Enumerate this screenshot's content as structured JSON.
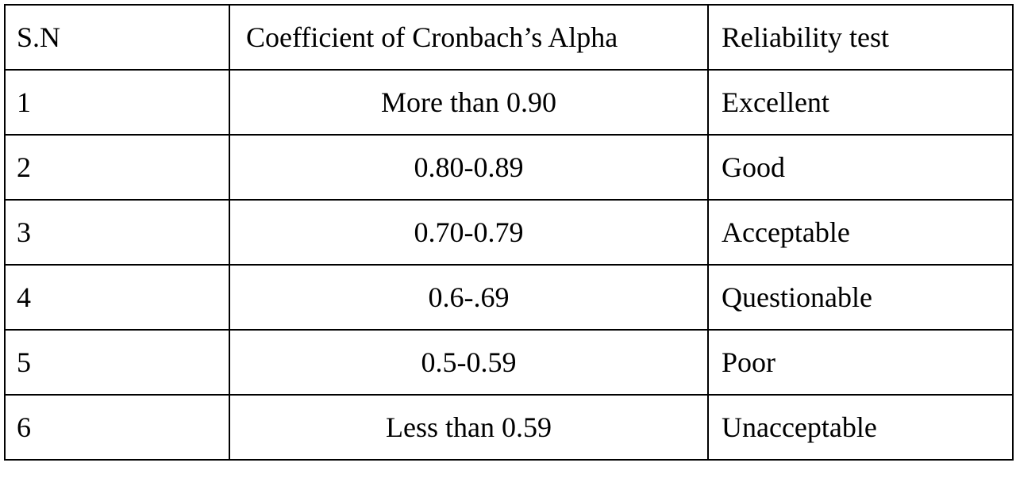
{
  "table": {
    "headers": [
      "S.N",
      "Coefficient of Cronbach’s Alpha",
      "Reliability test"
    ],
    "rows": [
      [
        "1",
        "More than 0.90",
        "Excellent"
      ],
      [
        "2",
        "0.80-0.89",
        "Good"
      ],
      [
        "3",
        "0.70-0.79",
        "Acceptable"
      ],
      [
        "4",
        "0.6-.69",
        "Questionable"
      ],
      [
        "5",
        "0.5-0.59",
        "Poor"
      ],
      [
        "6",
        "Less than 0.59",
        "Unacceptable"
      ]
    ]
  }
}
